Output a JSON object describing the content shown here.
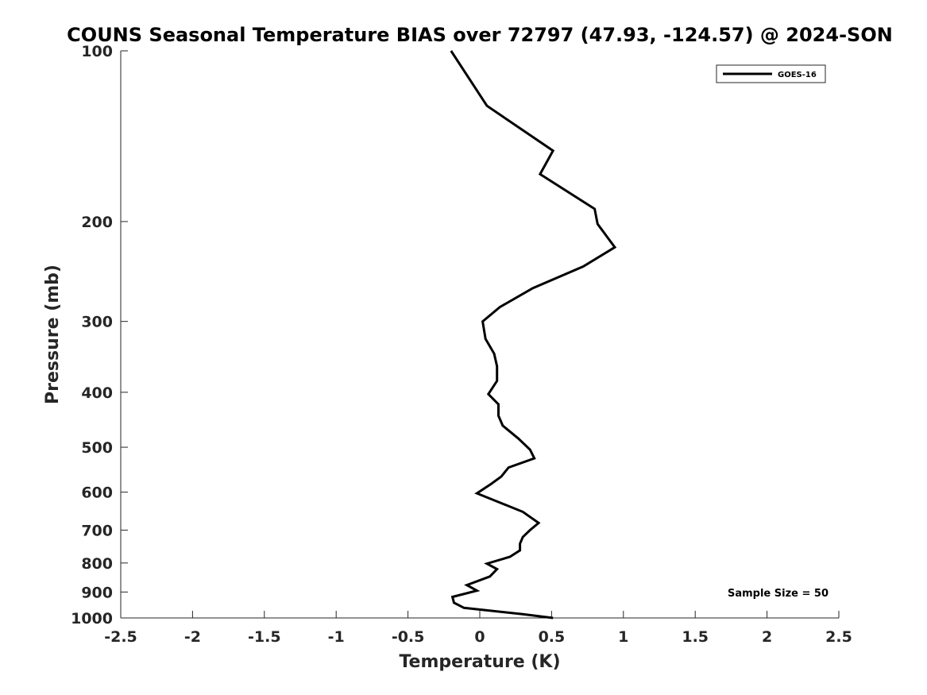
{
  "chart_data": {
    "type": "line",
    "title": "COUNS Seasonal Temperature BIAS over 72797 (47.93, -124.57) @ 2024-SON",
    "xlabel": "Temperature (K)",
    "ylabel": "Pressure (mb)",
    "xlim": [
      -2.5,
      2.5
    ],
    "ylim": [
      100,
      1000
    ],
    "yscale": "log",
    "y_reversed": true,
    "grid": false,
    "legend_position": "top-right",
    "x_ticks": [
      "-2.5",
      "-2",
      "-1.5",
      "-1",
      "-0.5",
      "0",
      "0.5",
      "1",
      "1.5",
      "2",
      "2.5"
    ],
    "y_ticks": [
      "100",
      "200",
      "300",
      "400",
      "500",
      "600",
      "700",
      "800",
      "900",
      "1000"
    ],
    "series": [
      {
        "name": "GOES-16",
        "color": "#000000",
        "points": [
          [
            -0.2,
            100
          ],
          [
            0.05,
            125
          ],
          [
            0.51,
            150
          ],
          [
            0.42,
            165
          ],
          [
            0.8,
            190
          ],
          [
            0.82,
            202
          ],
          [
            0.94,
            222
          ],
          [
            0.72,
            240
          ],
          [
            0.37,
            262
          ],
          [
            0.14,
            283
          ],
          [
            0.02,
            300
          ],
          [
            0.04,
            322
          ],
          [
            0.1,
            342
          ],
          [
            0.12,
            360
          ],
          [
            0.12,
            382
          ],
          [
            0.06,
            403
          ],
          [
            0.13,
            420
          ],
          [
            0.13,
            440
          ],
          [
            0.16,
            458
          ],
          [
            0.27,
            483
          ],
          [
            0.35,
            505
          ],
          [
            0.38,
            523
          ],
          [
            0.2,
            543
          ],
          [
            0.15,
            563
          ],
          [
            0.08,
            580
          ],
          [
            -0.02,
            603
          ],
          [
            0.3,
            650
          ],
          [
            0.41,
            680
          ],
          [
            0.35,
            700
          ],
          [
            0.3,
            720
          ],
          [
            0.28,
            740
          ],
          [
            0.28,
            760
          ],
          [
            0.21,
            780
          ],
          [
            0.05,
            802
          ],
          [
            0.12,
            820
          ],
          [
            0.07,
            845
          ],
          [
            -0.09,
            875
          ],
          [
            -0.02,
            895
          ],
          [
            -0.19,
            918
          ],
          [
            -0.18,
            940
          ],
          [
            -0.11,
            960
          ],
          [
            0.3,
            985
          ],
          [
            0.51,
            1000
          ]
        ]
      }
    ],
    "annotations": [
      "Sample Size = 50"
    ]
  }
}
